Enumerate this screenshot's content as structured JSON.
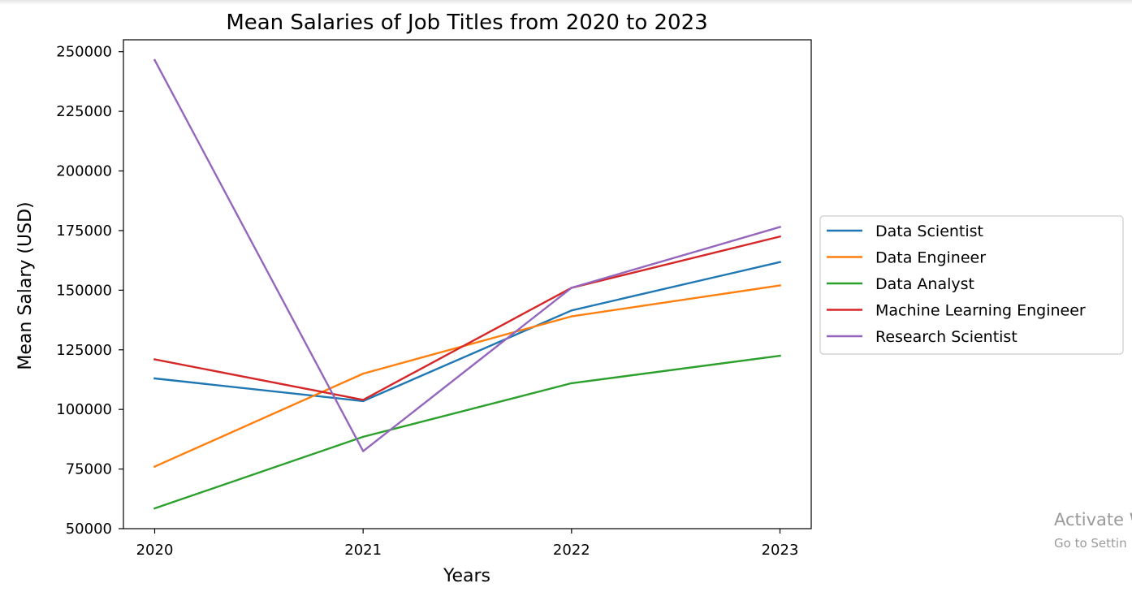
{
  "chart_data": {
    "type": "line",
    "title": "Mean Salaries of Job Titles from 2020 to 2023",
    "xlabel": "Years",
    "ylabel": "Mean Salary (USD)",
    "x": [
      2020,
      2021,
      2022,
      2023
    ],
    "x_tick_labels": [
      "2020",
      "2021",
      "2022",
      "2023"
    ],
    "xlim": [
      2019.85,
      2023.15
    ],
    "ylim": [
      50000,
      255000
    ],
    "y_ticks": [
      50000,
      75000,
      100000,
      125000,
      150000,
      175000,
      200000,
      225000,
      250000
    ],
    "y_tick_labels": [
      "50000",
      "75000",
      "100000",
      "125000",
      "150000",
      "175000",
      "200000",
      "225000",
      "250000"
    ],
    "grid": false,
    "legend_position": "center-right, outside plot",
    "series": [
      {
        "name": "Data Scientist",
        "color": "#1f77b4",
        "values": [
          113000,
          103500,
          141500,
          161800
        ]
      },
      {
        "name": "Data Engineer",
        "color": "#ff7f0e",
        "values": [
          76000,
          115000,
          139000,
          152000
        ]
      },
      {
        "name": "Data Analyst",
        "color": "#2ca02c",
        "values": [
          58500,
          88500,
          111000,
          122500
        ]
      },
      {
        "name": "Machine Learning Engineer",
        "color": "#d62728",
        "values": [
          121000,
          104000,
          151000,
          172500
        ]
      },
      {
        "name": "Research Scientist",
        "color": "#9467bd",
        "values": [
          246500,
          82500,
          151000,
          176500
        ]
      }
    ]
  },
  "watermark": {
    "line1": "Activate W",
    "line2": "Go to Settin"
  }
}
